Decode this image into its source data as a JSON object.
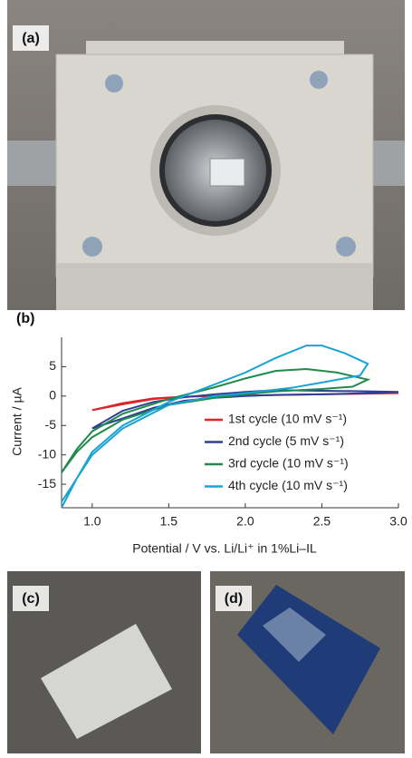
{
  "panel_labels": [
    "(a)",
    "(c)",
    "(d)"
  ],
  "chart_data": {
    "type": "line",
    "panel_label": "(b)",
    "x_label": "Potential / V vs. Li/Li⁺ in 1%Li–IL",
    "y_label": "Current / µA",
    "xlim": [
      0.8,
      3.0
    ],
    "xticks": [
      {
        "value": 1.0,
        "label": "1.0"
      },
      1.5,
      {
        "value": 2.0,
        "label": "2.0"
      },
      2.5,
      {
        "value": 3.0,
        "label": "3.0"
      }
    ],
    "ylim": [
      -19,
      10
    ],
    "yticks": [
      -15,
      -10,
      -5,
      0,
      5
    ],
    "grid": false,
    "legend": "lower-right",
    "series": [
      {
        "name": "1st cycle (10 mV s⁻¹)",
        "color": "#d9262b",
        "x": [
          1.0,
          1.2,
          1.4,
          1.6,
          2.0,
          2.5,
          3.0,
          2.5,
          2.0,
          1.6,
          1.4,
          1.2,
          1.0
        ],
        "values": [
          -2.4,
          -1.2,
          -0.4,
          -0.1,
          0.1,
          0.3,
          0.5,
          0.3,
          0.1,
          -0.1,
          -0.5,
          -1.4,
          -2.4
        ]
      },
      {
        "name": "2nd cycle (5 mV s⁻¹)",
        "color": "#2f3f93",
        "x": [
          1.0,
          1.2,
          1.4,
          1.6,
          1.8,
          2.0,
          2.2,
          2.5,
          2.8,
          3.0,
          2.8,
          2.5,
          2.2,
          2.0,
          1.8,
          1.6,
          1.4,
          1.2,
          1.0
        ],
        "values": [
          -5.5,
          -2.5,
          -1.0,
          -0.2,
          0.3,
          0.7,
          1.0,
          0.9,
          0.8,
          0.7,
          0.5,
          0.3,
          0.2,
          0,
          -0.3,
          -0.8,
          -2.0,
          -3.8,
          -5.5
        ]
      },
      {
        "name": "3rd cycle (10 mV s⁻¹)",
        "color": "#1f8a4c",
        "x": [
          0.8,
          0.9,
          1.0,
          1.2,
          1.5,
          1.8,
          2.0,
          2.2,
          2.4,
          2.6,
          2.8,
          2.7,
          2.5,
          2.2,
          2.0,
          1.8,
          1.5,
          1.2,
          1.0,
          0.9,
          0.8
        ],
        "values": [
          -13,
          -9,
          -6,
          -3,
          -0.5,
          1.5,
          3,
          4.3,
          4.6,
          4,
          2.8,
          1.6,
          1.2,
          0.8,
          0.3,
          -0.3,
          -1.5,
          -4,
          -7,
          -9.5,
          -13
        ]
      },
      {
        "name": "4th cycle (10 mV s⁻¹)",
        "color": "#1aa3d3",
        "x": [
          0.8,
          0.9,
          1.0,
          1.2,
          1.5,
          1.8,
          2.0,
          2.2,
          2.4,
          2.5,
          2.65,
          2.8,
          2.75,
          2.5,
          2.3,
          2.0,
          1.8,
          1.5,
          1.2,
          1.0,
          0.9,
          0.8
        ],
        "values": [
          -19,
          -14,
          -9.5,
          -5,
          -1,
          2,
          4,
          6.5,
          8.6,
          8.6,
          7.3,
          5.5,
          3.5,
          2.3,
          1.4,
          0.5,
          0,
          -1.5,
          -5.5,
          -10,
          -14,
          -18
        ]
      }
    ]
  }
}
